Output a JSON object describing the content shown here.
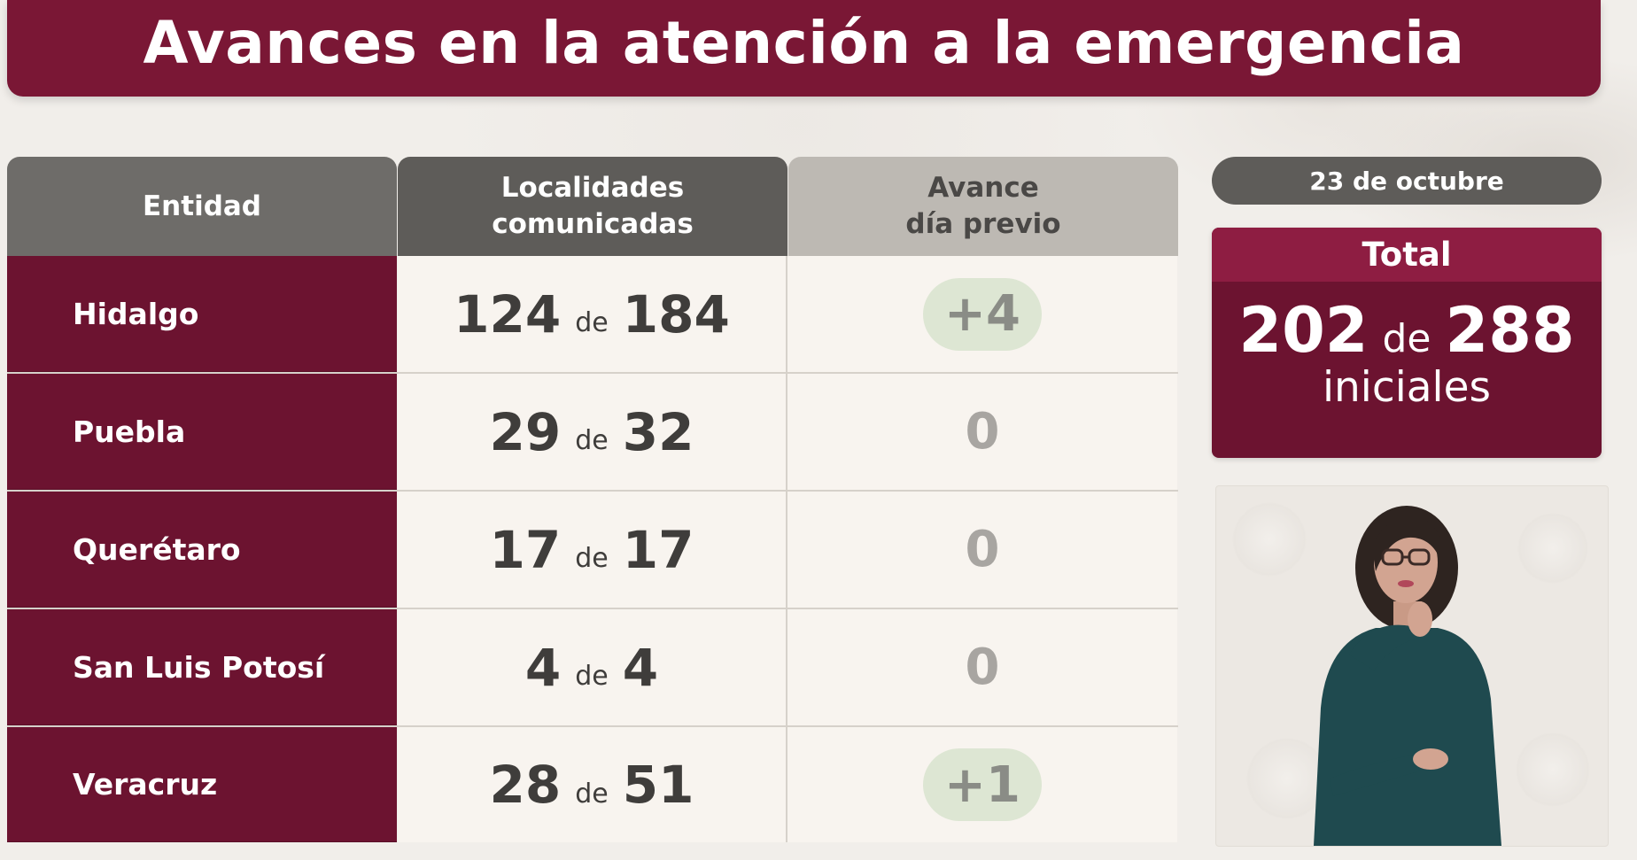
{
  "title": "Avances en la atención a la emergencia",
  "table": {
    "headers": {
      "entity": "Entidad",
      "localities_line1": "Localidades",
      "localities_line2": "comunicadas",
      "prev_line1": "Avance",
      "prev_line2": "día previo"
    },
    "connector": "de",
    "rows": [
      {
        "entity": "Hidalgo",
        "done": "124",
        "total": "184",
        "prev": "+4"
      },
      {
        "entity": "Puebla",
        "done": "29",
        "total": "32",
        "prev": "0"
      },
      {
        "entity": "Querétaro",
        "done": "17",
        "total": "17",
        "prev": "0"
      },
      {
        "entity": "San Luis Potosí",
        "done": "4",
        "total": "4",
        "prev": "0"
      },
      {
        "entity": "Veracruz",
        "done": "28",
        "total": "51",
        "prev": "+1"
      }
    ]
  },
  "sidebar": {
    "date": "23 de octubre",
    "total_label": "Total",
    "total_done": "202",
    "total_connector": "de",
    "total_all": "288",
    "total_sub": "iniciales"
  },
  "colors": {
    "title_bg": "#7a1735",
    "entity_bg": "#6c1330",
    "header_dark": "#5e5c59",
    "header_light": "#bdb9b3",
    "pill_green": "#dde6d3"
  }
}
